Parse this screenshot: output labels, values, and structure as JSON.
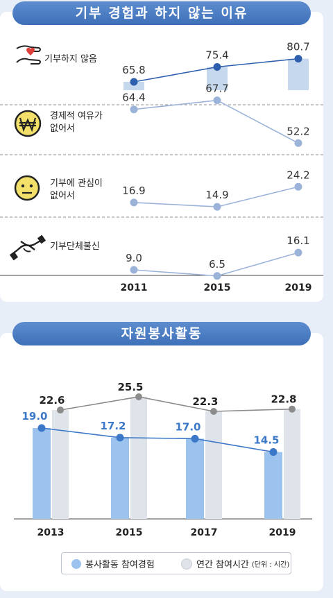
{
  "reasons": {
    "title": "기부 경험과 하지 않는 이유",
    "years": [
      "2011",
      "2015",
      "2019"
    ],
    "rows": [
      {
        "label": [
          "기부하지 않음"
        ],
        "icon": "hand-heart-icon",
        "values": [
          65.8,
          75.4,
          80.7
        ],
        "bars": true
      },
      {
        "label": [
          "경제적 여유가",
          "없어서"
        ],
        "icon": "won-coin-icon",
        "values": [
          64.4,
          67.7,
          52.2
        ],
        "bars": false
      },
      {
        "label": [
          "기부에 관심이",
          "없어서"
        ],
        "icon": "neutral-face-icon",
        "values": [
          16.9,
          14.9,
          24.2
        ],
        "bars": false
      },
      {
        "label": [
          "기부단체불신"
        ],
        "icon": "handshake-icon",
        "values": [
          9.0,
          6.5,
          16.1
        ],
        "bars": false
      }
    ]
  },
  "volunteer": {
    "title": "자원봉사활동",
    "chart_data": {
      "type": "bar",
      "categories": [
        "2013",
        "2015",
        "2017",
        "2019"
      ],
      "series": [
        {
          "name": "봉사활동 참여경험",
          "values": [
            19.0,
            17.2,
            17.0,
            14.5
          ],
          "color": "#9cc3ee",
          "line_color": "#3b78c8"
        },
        {
          "name": "연간 참여시간",
          "values": [
            22.6,
            25.5,
            22.3,
            22.8
          ],
          "color": "#dfe3ea",
          "line_color": "#8c8c8c"
        }
      ],
      "legend_note": "(단위 : 시간)"
    }
  },
  "colors": {
    "accent": "#3e70b8",
    "bar_blue": "#c6d8ee",
    "line_blue": "#9bb3d9",
    "dot_blue": "#2e5fae"
  }
}
